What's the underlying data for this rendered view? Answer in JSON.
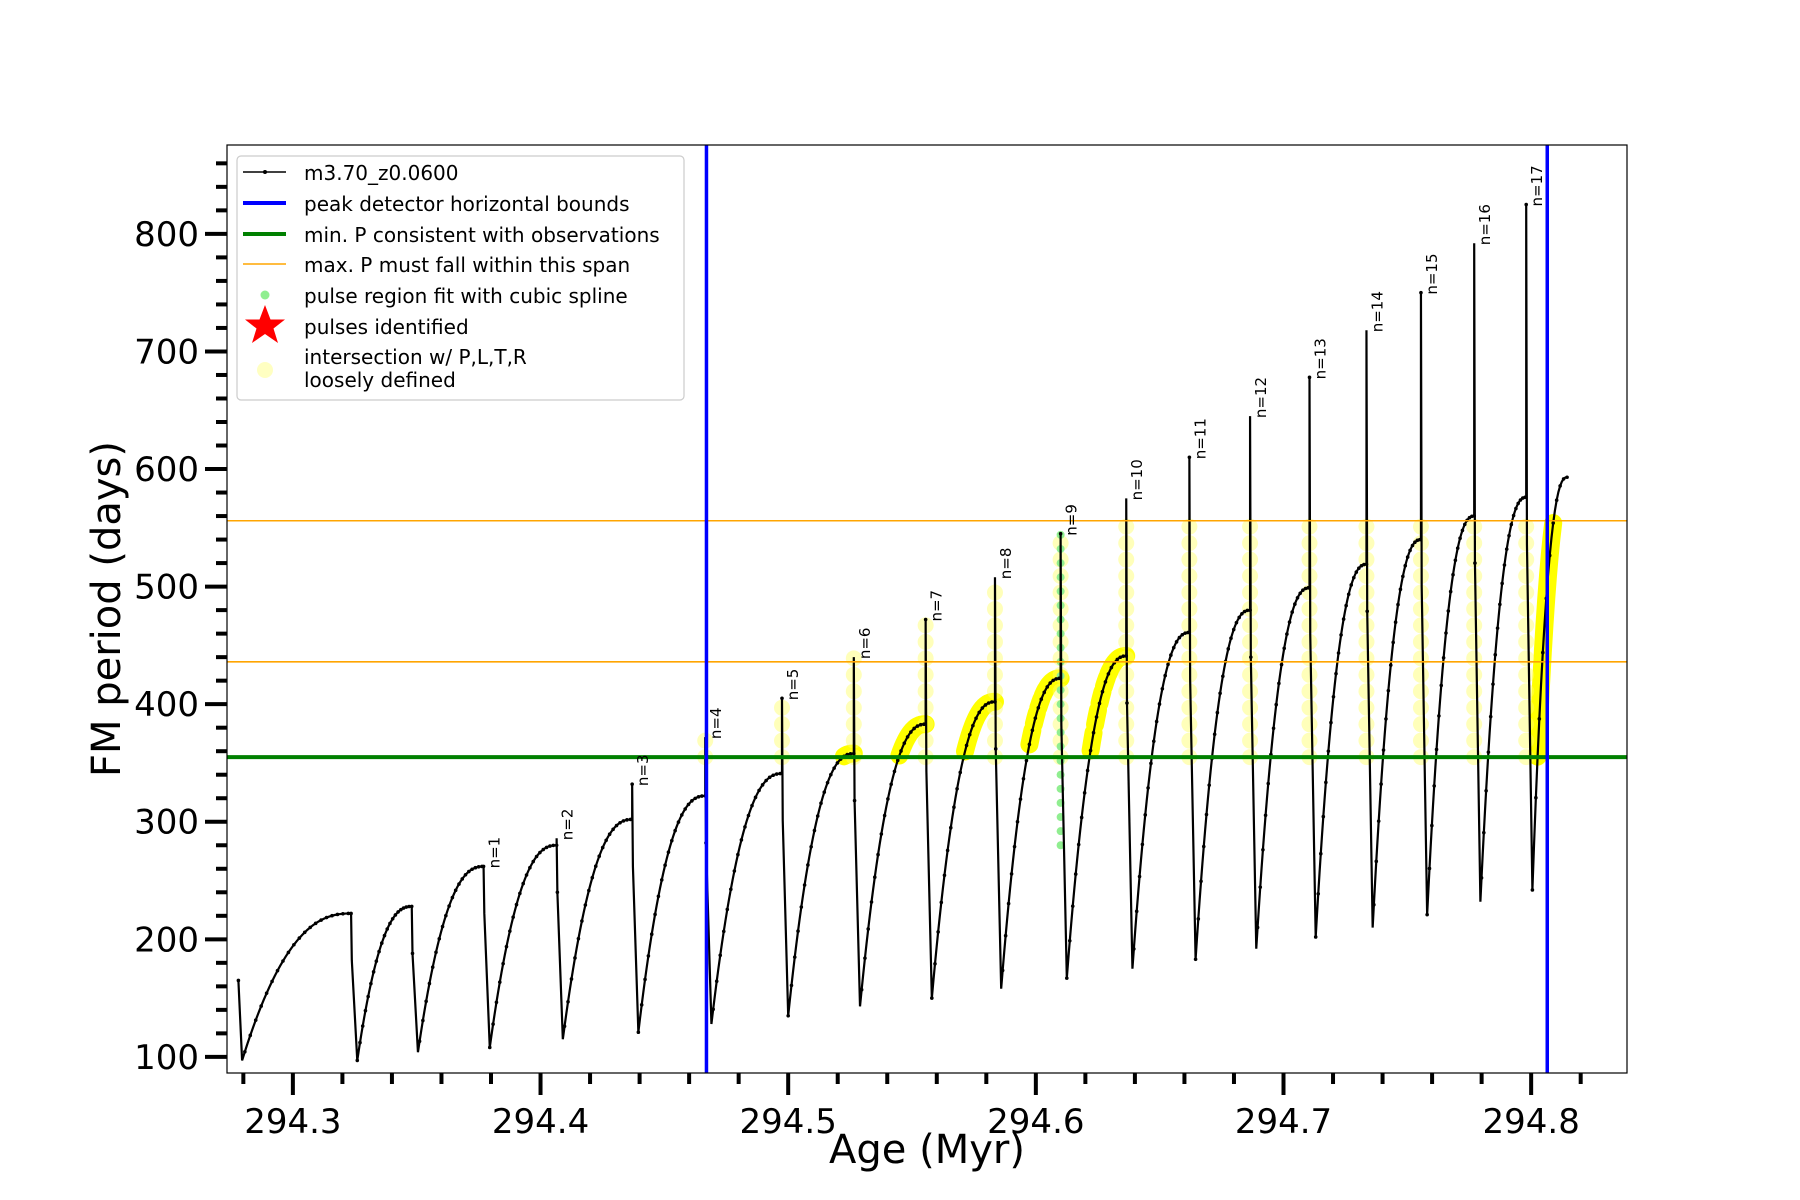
{
  "chart_data": {
    "type": "line",
    "xlabel": "Age (Myr)",
    "ylabel": "FM period (days)",
    "xlim": [
      294.2734,
      294.8387
    ],
    "ylim": [
      86.3,
      875.6
    ],
    "xticks": [
      294.3,
      294.4,
      294.5,
      294.6,
      294.7,
      294.8
    ],
    "xtick_labels": [
      "294.3",
      "294.4",
      "294.5",
      "294.6",
      "294.7",
      "294.8"
    ],
    "yticks": [
      100,
      200,
      300,
      400,
      500,
      600,
      700,
      800
    ],
    "ytick_labels": [
      "100",
      "200",
      "300",
      "400",
      "500",
      "600",
      "700",
      "800"
    ],
    "grid": false,
    "legend_position": "top-left",
    "legend": [
      {
        "label": "m3.70_z0.0600",
        "marker": "line-dot",
        "color": "#000000"
      },
      {
        "label": "peak detector horizontal bounds",
        "marker": "line",
        "color": "#0000ff"
      },
      {
        "label": "min. P consistent with observations",
        "marker": "line",
        "color": "#008000"
      },
      {
        "label": "max. P must fall within this span",
        "marker": "thin-line",
        "color": "#ffa500"
      },
      {
        "label": "pulse region fit with cubic spline",
        "marker": "dot",
        "color": "#90ee90"
      },
      {
        "label": "pulses identified",
        "marker": "star",
        "color": "#ff0000"
      },
      {
        "label": "intersection w/ P,L,T,R",
        "label2": "loosely defined",
        "marker": "circle",
        "color": "#ffff99"
      }
    ],
    "series_name": "m3.70_z0.0600",
    "start": {
      "age": 294.278,
      "period": 165,
      "trough": 97
    },
    "cycles": [
      {
        "n": null,
        "drop_age": 294.3235,
        "peak": 222,
        "spike": 222,
        "trough": 97
      },
      {
        "n": null,
        "drop_age": 294.348,
        "peak": 228,
        "spike": 228,
        "trough": 104
      },
      {
        "n": "n=1",
        "drop_age": 294.377,
        "peak": 262,
        "spike": 262,
        "trough": 108
      },
      {
        "n": "n=2",
        "drop_age": 294.4065,
        "peak": 280,
        "spike": 286,
        "trough": 115
      },
      {
        "n": "n=3",
        "drop_age": 294.437,
        "peak": 302,
        "spike": 332,
        "trough": 121
      },
      {
        "n": "n=4",
        "drop_age": 294.4665,
        "peak": 322,
        "spike": 372,
        "trough": 128
      },
      {
        "n": "n=5",
        "drop_age": 294.4975,
        "peak": 341,
        "spike": 405,
        "trough": 135
      },
      {
        "n": "n=6",
        "drop_age": 294.5265,
        "peak": 358,
        "spike": 440,
        "trough": 143
      },
      {
        "n": "n=7",
        "drop_age": 294.5555,
        "peak": 383,
        "spike": 472,
        "trough": 150
      },
      {
        "n": "n=8",
        "drop_age": 294.5835,
        "peak": 402,
        "spike": 508,
        "trough": 158
      },
      {
        "n": "n=9",
        "drop_age": 294.61,
        "peak": 422,
        "spike": 545,
        "trough": 167
      },
      {
        "n": "n=10",
        "drop_age": 294.6365,
        "peak": 441,
        "spike": 575,
        "trough": 175
      },
      {
        "n": "n=11",
        "drop_age": 294.662,
        "peak": 461,
        "spike": 610,
        "trough": 183
      },
      {
        "n": "n=12",
        "drop_age": 294.6865,
        "peak": 480,
        "spike": 645,
        "trough": 192
      },
      {
        "n": "n=13",
        "drop_age": 294.7105,
        "peak": 499,
        "spike": 678,
        "trough": 202
      },
      {
        "n": "n=14",
        "drop_age": 294.7335,
        "peak": 519,
        "spike": 718,
        "trough": 210
      },
      {
        "n": "n=15",
        "drop_age": 294.7555,
        "peak": 540,
        "spike": 750,
        "trough": 221
      },
      {
        "n": "n=16",
        "drop_age": 294.777,
        "peak": 560,
        "spike": 792,
        "trough": 232
      },
      {
        "n": "n=17",
        "drop_age": 294.798,
        "peak": 576,
        "spike": 825,
        "trough": 242
      }
    ],
    "end": {
      "age": 294.8145,
      "period": 593
    },
    "vlines": [
      {
        "name": "peak detector horizontal bounds",
        "x": 294.467,
        "color": "#0000ff"
      },
      {
        "name": "peak detector horizontal bounds",
        "x": 294.8065,
        "color": "#0000ff"
      }
    ],
    "hlines": [
      {
        "name": "min. P consistent with observations",
        "y": 355,
        "color": "#008000"
      },
      {
        "name": "max. P lower",
        "y": 436,
        "color": "#ffa500"
      },
      {
        "name": "max. P upper",
        "y": 556,
        "color": "#ffa500"
      }
    ],
    "highlight_range": [
      355,
      556
    ],
    "highlight_from_age": 294.5,
    "green_spline_cycle": "n=9"
  }
}
